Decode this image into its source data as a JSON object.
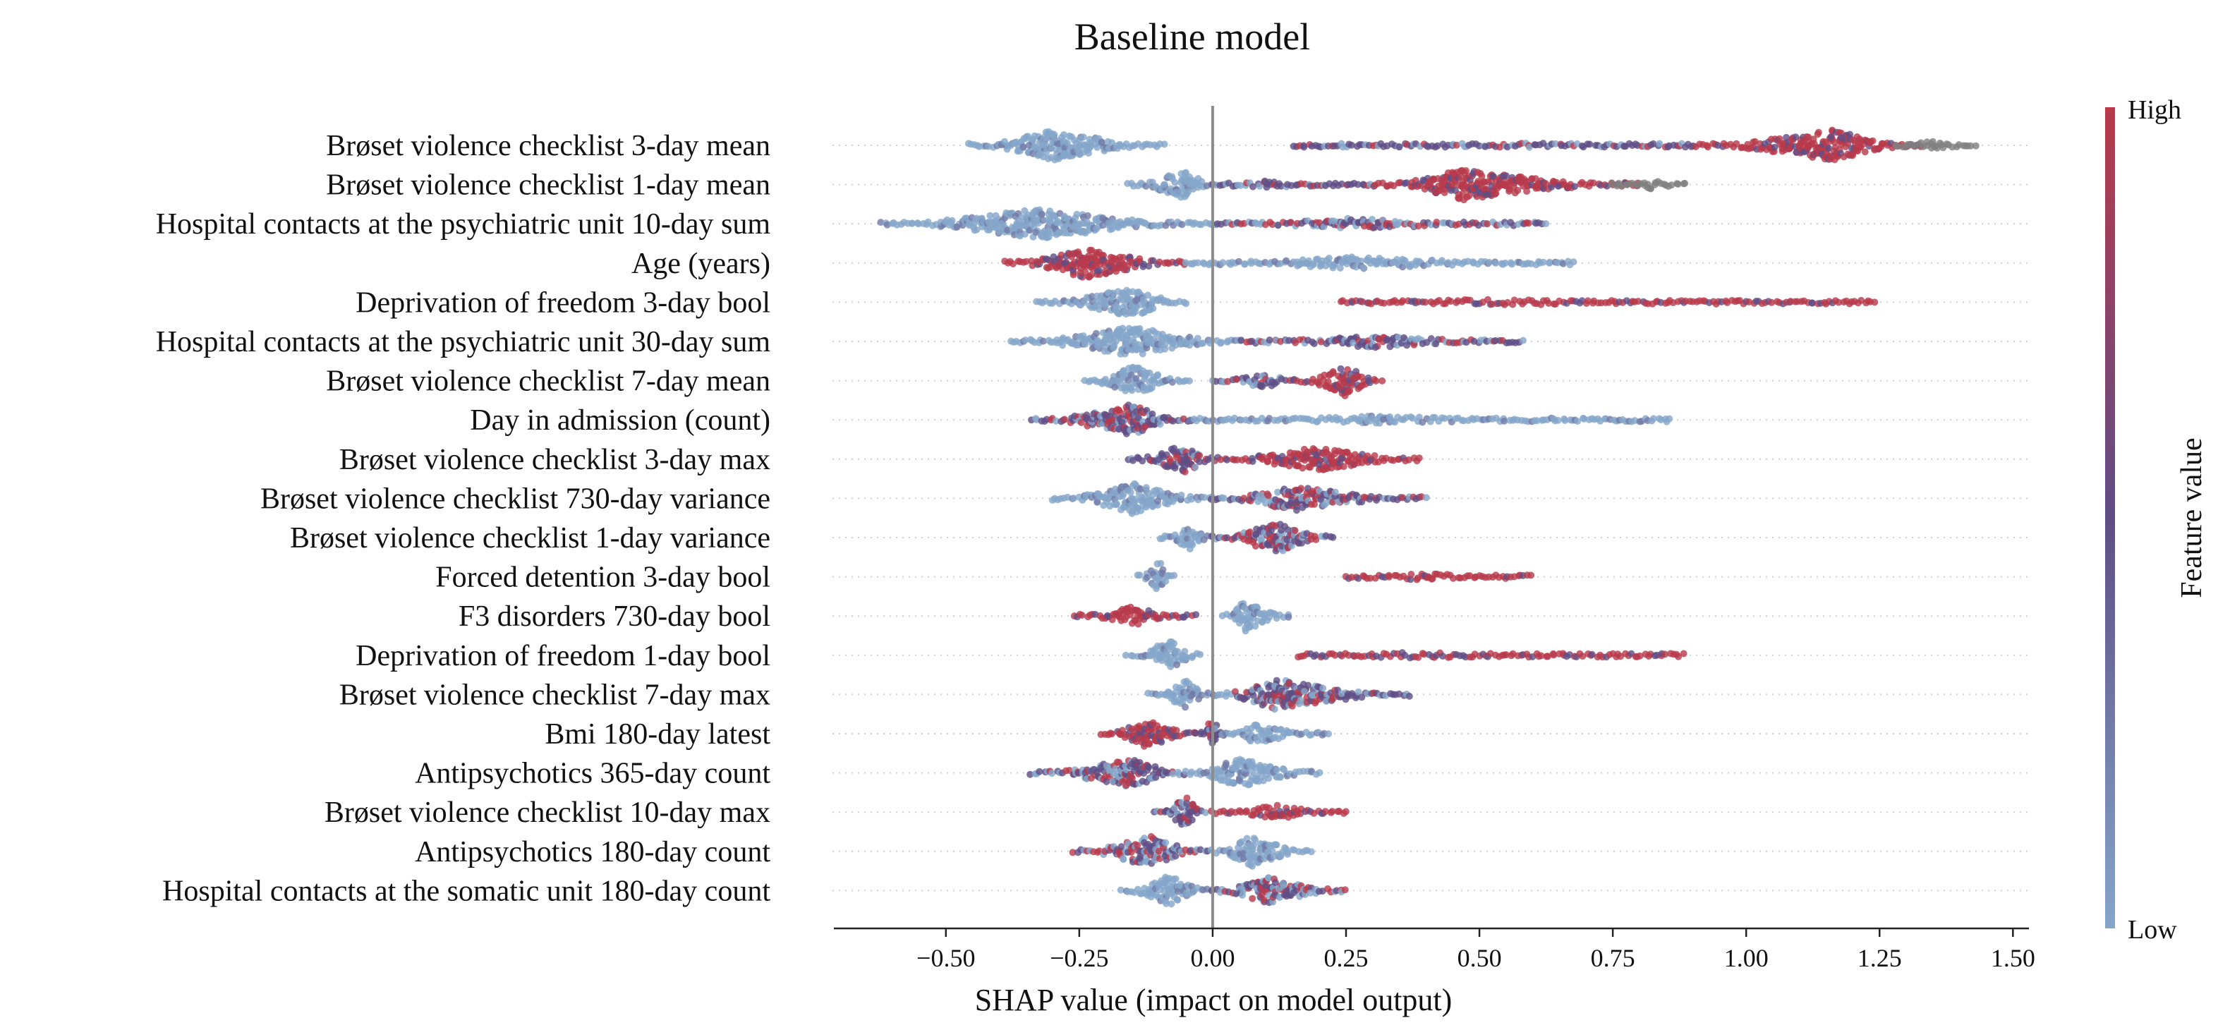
{
  "chart_data": {
    "type": "scatter",
    "title": "Baseline model",
    "xlabel": "SHAP value (impact on model output)",
    "x_ticks": [
      -0.5,
      -0.25,
      0.0,
      0.25,
      0.5,
      0.75,
      1.0,
      1.25,
      1.5
    ],
    "x_tick_labels": [
      "−0.50",
      "−0.25",
      "0.00",
      "0.25",
      "0.50",
      "0.75",
      "1.00",
      "1.25",
      "1.50"
    ],
    "xlim": [
      -0.71,
      1.53
    ],
    "colorbar": {
      "label": "Feature value",
      "high_label": "High",
      "low_label": "Low",
      "high_color": "#b83a4b",
      "mid_color": "#5f4d86",
      "low_color": "#84a6c9",
      "missing_color": "#7f7f7f"
    },
    "features": [
      {
        "name": "Brøset violence checklist 3-day mean",
        "segments": [
          {
            "x0": -0.46,
            "x1": -0.09,
            "peak": -0.3,
            "peak_h": 1.0,
            "tone": "low"
          },
          {
            "x0": 0.15,
            "x1": 0.9,
            "peak": 0.6,
            "peak_h": 0.15,
            "tone": "mid"
          },
          {
            "x0": 0.9,
            "x1": 1.33,
            "peak": 1.16,
            "peak_h": 1.0,
            "tone": "high"
          },
          {
            "x0": 1.28,
            "x1": 1.43,
            "peak": 1.35,
            "peak_h": 0.3,
            "tone": "missing"
          }
        ]
      },
      {
        "name": "Brøset violence checklist 1-day mean",
        "segments": [
          {
            "x0": -0.16,
            "x1": 0.0,
            "peak": -0.05,
            "peak_h": 1.0,
            "tone": "low"
          },
          {
            "x0": 0.0,
            "x1": 0.3,
            "peak": 0.1,
            "peak_h": 0.25,
            "tone": "mid"
          },
          {
            "x0": 0.3,
            "x1": 0.8,
            "peak": 0.47,
            "peak_h": 1.0,
            "tone": "high"
          },
          {
            "x0": 0.75,
            "x1": 0.89,
            "peak": 0.82,
            "peak_h": 0.3,
            "tone": "missing"
          }
        ]
      },
      {
        "name": "Hospital contacts at the psychiatric unit 10-day sum",
        "segments": [
          {
            "x0": -0.62,
            "x1": 0.0,
            "peak": -0.33,
            "peak_h": 1.0,
            "tone": "low"
          },
          {
            "x0": 0.0,
            "x1": 0.63,
            "peak": 0.25,
            "peak_h": 0.35,
            "tone": "mix"
          }
        ]
      },
      {
        "name": "Age (years)",
        "segments": [
          {
            "x0": -0.39,
            "x1": -0.05,
            "peak": -0.24,
            "peak_h": 1.0,
            "tone": "high"
          },
          {
            "x0": -0.05,
            "x1": 0.68,
            "peak": 0.25,
            "peak_h": 0.4,
            "tone": "low"
          }
        ]
      },
      {
        "name": "Deprivation of freedom 3-day bool",
        "segments": [
          {
            "x0": -0.33,
            "x1": -0.05,
            "peak": -0.15,
            "peak_h": 1.0,
            "tone": "low"
          },
          {
            "x0": 0.24,
            "x1": 1.24,
            "peak": 0.5,
            "peak_h": 0.2,
            "tone": "high"
          }
        ]
      },
      {
        "name": "Hospital contacts at the psychiatric unit 30-day sum",
        "segments": [
          {
            "x0": -0.38,
            "x1": 0.05,
            "peak": -0.15,
            "peak_h": 1.0,
            "tone": "low"
          },
          {
            "x0": 0.05,
            "x1": 0.58,
            "peak": 0.3,
            "peak_h": 0.4,
            "tone": "mix"
          }
        ]
      },
      {
        "name": "Brøset violence checklist 7-day mean",
        "segments": [
          {
            "x0": -0.24,
            "x1": -0.04,
            "peak": -0.15,
            "peak_h": 1.0,
            "tone": "low"
          },
          {
            "x0": 0.0,
            "x1": 0.16,
            "peak": 0.1,
            "peak_h": 0.5,
            "tone": "mid"
          },
          {
            "x0": 0.16,
            "x1": 0.32,
            "peak": 0.25,
            "peak_h": 1.0,
            "tone": "high"
          }
        ]
      },
      {
        "name": "Day in admission (count)",
        "segments": [
          {
            "x0": -0.34,
            "x1": -0.04,
            "peak": -0.15,
            "peak_h": 1.0,
            "tone": "mix"
          },
          {
            "x0": -0.04,
            "x1": 0.86,
            "peak": 0.3,
            "peak_h": 0.25,
            "tone": "low"
          }
        ]
      },
      {
        "name": "Brøset violence checklist 3-day max",
        "segments": [
          {
            "x0": -0.16,
            "x1": 0.0,
            "peak": -0.05,
            "peak_h": 1.0,
            "tone": "mid"
          },
          {
            "x0": 0.0,
            "x1": 0.39,
            "peak": 0.2,
            "peak_h": 0.8,
            "tone": "high"
          }
        ]
      },
      {
        "name": "Brøset violence checklist 730-day variance",
        "segments": [
          {
            "x0": -0.3,
            "x1": 0.0,
            "peak": -0.15,
            "peak_h": 1.0,
            "tone": "low"
          },
          {
            "x0": 0.0,
            "x1": 0.4,
            "peak": 0.15,
            "peak_h": 0.8,
            "tone": "mix"
          }
        ]
      },
      {
        "name": "Brøset violence checklist 1-day variance",
        "segments": [
          {
            "x0": -0.1,
            "x1": 0.0,
            "peak": -0.04,
            "peak_h": 0.8,
            "tone": "low"
          },
          {
            "x0": 0.0,
            "x1": 0.23,
            "peak": 0.12,
            "peak_h": 1.0,
            "tone": "mix"
          }
        ]
      },
      {
        "name": "Forced detention 3-day bool",
        "segments": [
          {
            "x0": -0.14,
            "x1": -0.07,
            "peak": -0.1,
            "peak_h": 1.0,
            "tone": "low"
          },
          {
            "x0": 0.25,
            "x1": 0.6,
            "peak": 0.4,
            "peak_h": 0.25,
            "tone": "high"
          }
        ]
      },
      {
        "name": "F3 disorders 730-day bool",
        "segments": [
          {
            "x0": -0.26,
            "x1": -0.03,
            "peak": -0.15,
            "peak_h": 0.6,
            "tone": "high"
          },
          {
            "x0": 0.02,
            "x1": 0.15,
            "peak": 0.06,
            "peak_h": 1.0,
            "tone": "low"
          }
        ]
      },
      {
        "name": "Deprivation of freedom 1-day bool",
        "segments": [
          {
            "x0": -0.16,
            "x1": -0.02,
            "peak": -0.08,
            "peak_h": 1.0,
            "tone": "low"
          },
          {
            "x0": 0.16,
            "x1": 0.88,
            "peak": 0.35,
            "peak_h": 0.2,
            "tone": "high"
          }
        ]
      },
      {
        "name": "Brøset violence checklist 7-day max",
        "segments": [
          {
            "x0": -0.12,
            "x1": 0.0,
            "peak": -0.05,
            "peak_h": 0.9,
            "tone": "low"
          },
          {
            "x0": 0.0,
            "x1": 0.37,
            "peak": 0.12,
            "peak_h": 1.0,
            "tone": "mix"
          }
        ]
      },
      {
        "name": "Bmi 180-day latest",
        "segments": [
          {
            "x0": -0.21,
            "x1": -0.03,
            "peak": -0.12,
            "peak_h": 1.0,
            "tone": "high"
          },
          {
            "x0": -0.03,
            "x1": 0.02,
            "peak": 0.0,
            "peak_h": 1.0,
            "tone": "mid"
          },
          {
            "x0": 0.02,
            "x1": 0.22,
            "peak": 0.08,
            "peak_h": 0.6,
            "tone": "low"
          }
        ]
      },
      {
        "name": "Antipsychotics 365-day count",
        "segments": [
          {
            "x0": -0.34,
            "x1": -0.05,
            "peak": -0.15,
            "peak_h": 1.0,
            "tone": "mix"
          },
          {
            "x0": -0.05,
            "x1": 0.2,
            "peak": 0.05,
            "peak_h": 1.0,
            "tone": "low"
          }
        ]
      },
      {
        "name": "Brøset violence checklist 10-day max",
        "segments": [
          {
            "x0": -0.11,
            "x1": -0.01,
            "peak": -0.05,
            "peak_h": 1.0,
            "tone": "mid"
          },
          {
            "x0": 0.0,
            "x1": 0.25,
            "peak": 0.12,
            "peak_h": 0.45,
            "tone": "high"
          }
        ]
      },
      {
        "name": "Antipsychotics 180-day count",
        "segments": [
          {
            "x0": -0.26,
            "x1": -0.01,
            "peak": -0.12,
            "peak_h": 1.0,
            "tone": "mix"
          },
          {
            "x0": 0.0,
            "x1": 0.19,
            "peak": 0.07,
            "peak_h": 1.0,
            "tone": "low"
          }
        ]
      },
      {
        "name": "Hospital contacts at the somatic unit 180-day count",
        "segments": [
          {
            "x0": -0.17,
            "x1": 0.0,
            "peak": -0.08,
            "peak_h": 1.0,
            "tone": "low"
          },
          {
            "x0": 0.0,
            "x1": 0.25,
            "peak": 0.1,
            "peak_h": 0.9,
            "tone": "mix"
          }
        ]
      }
    ]
  }
}
